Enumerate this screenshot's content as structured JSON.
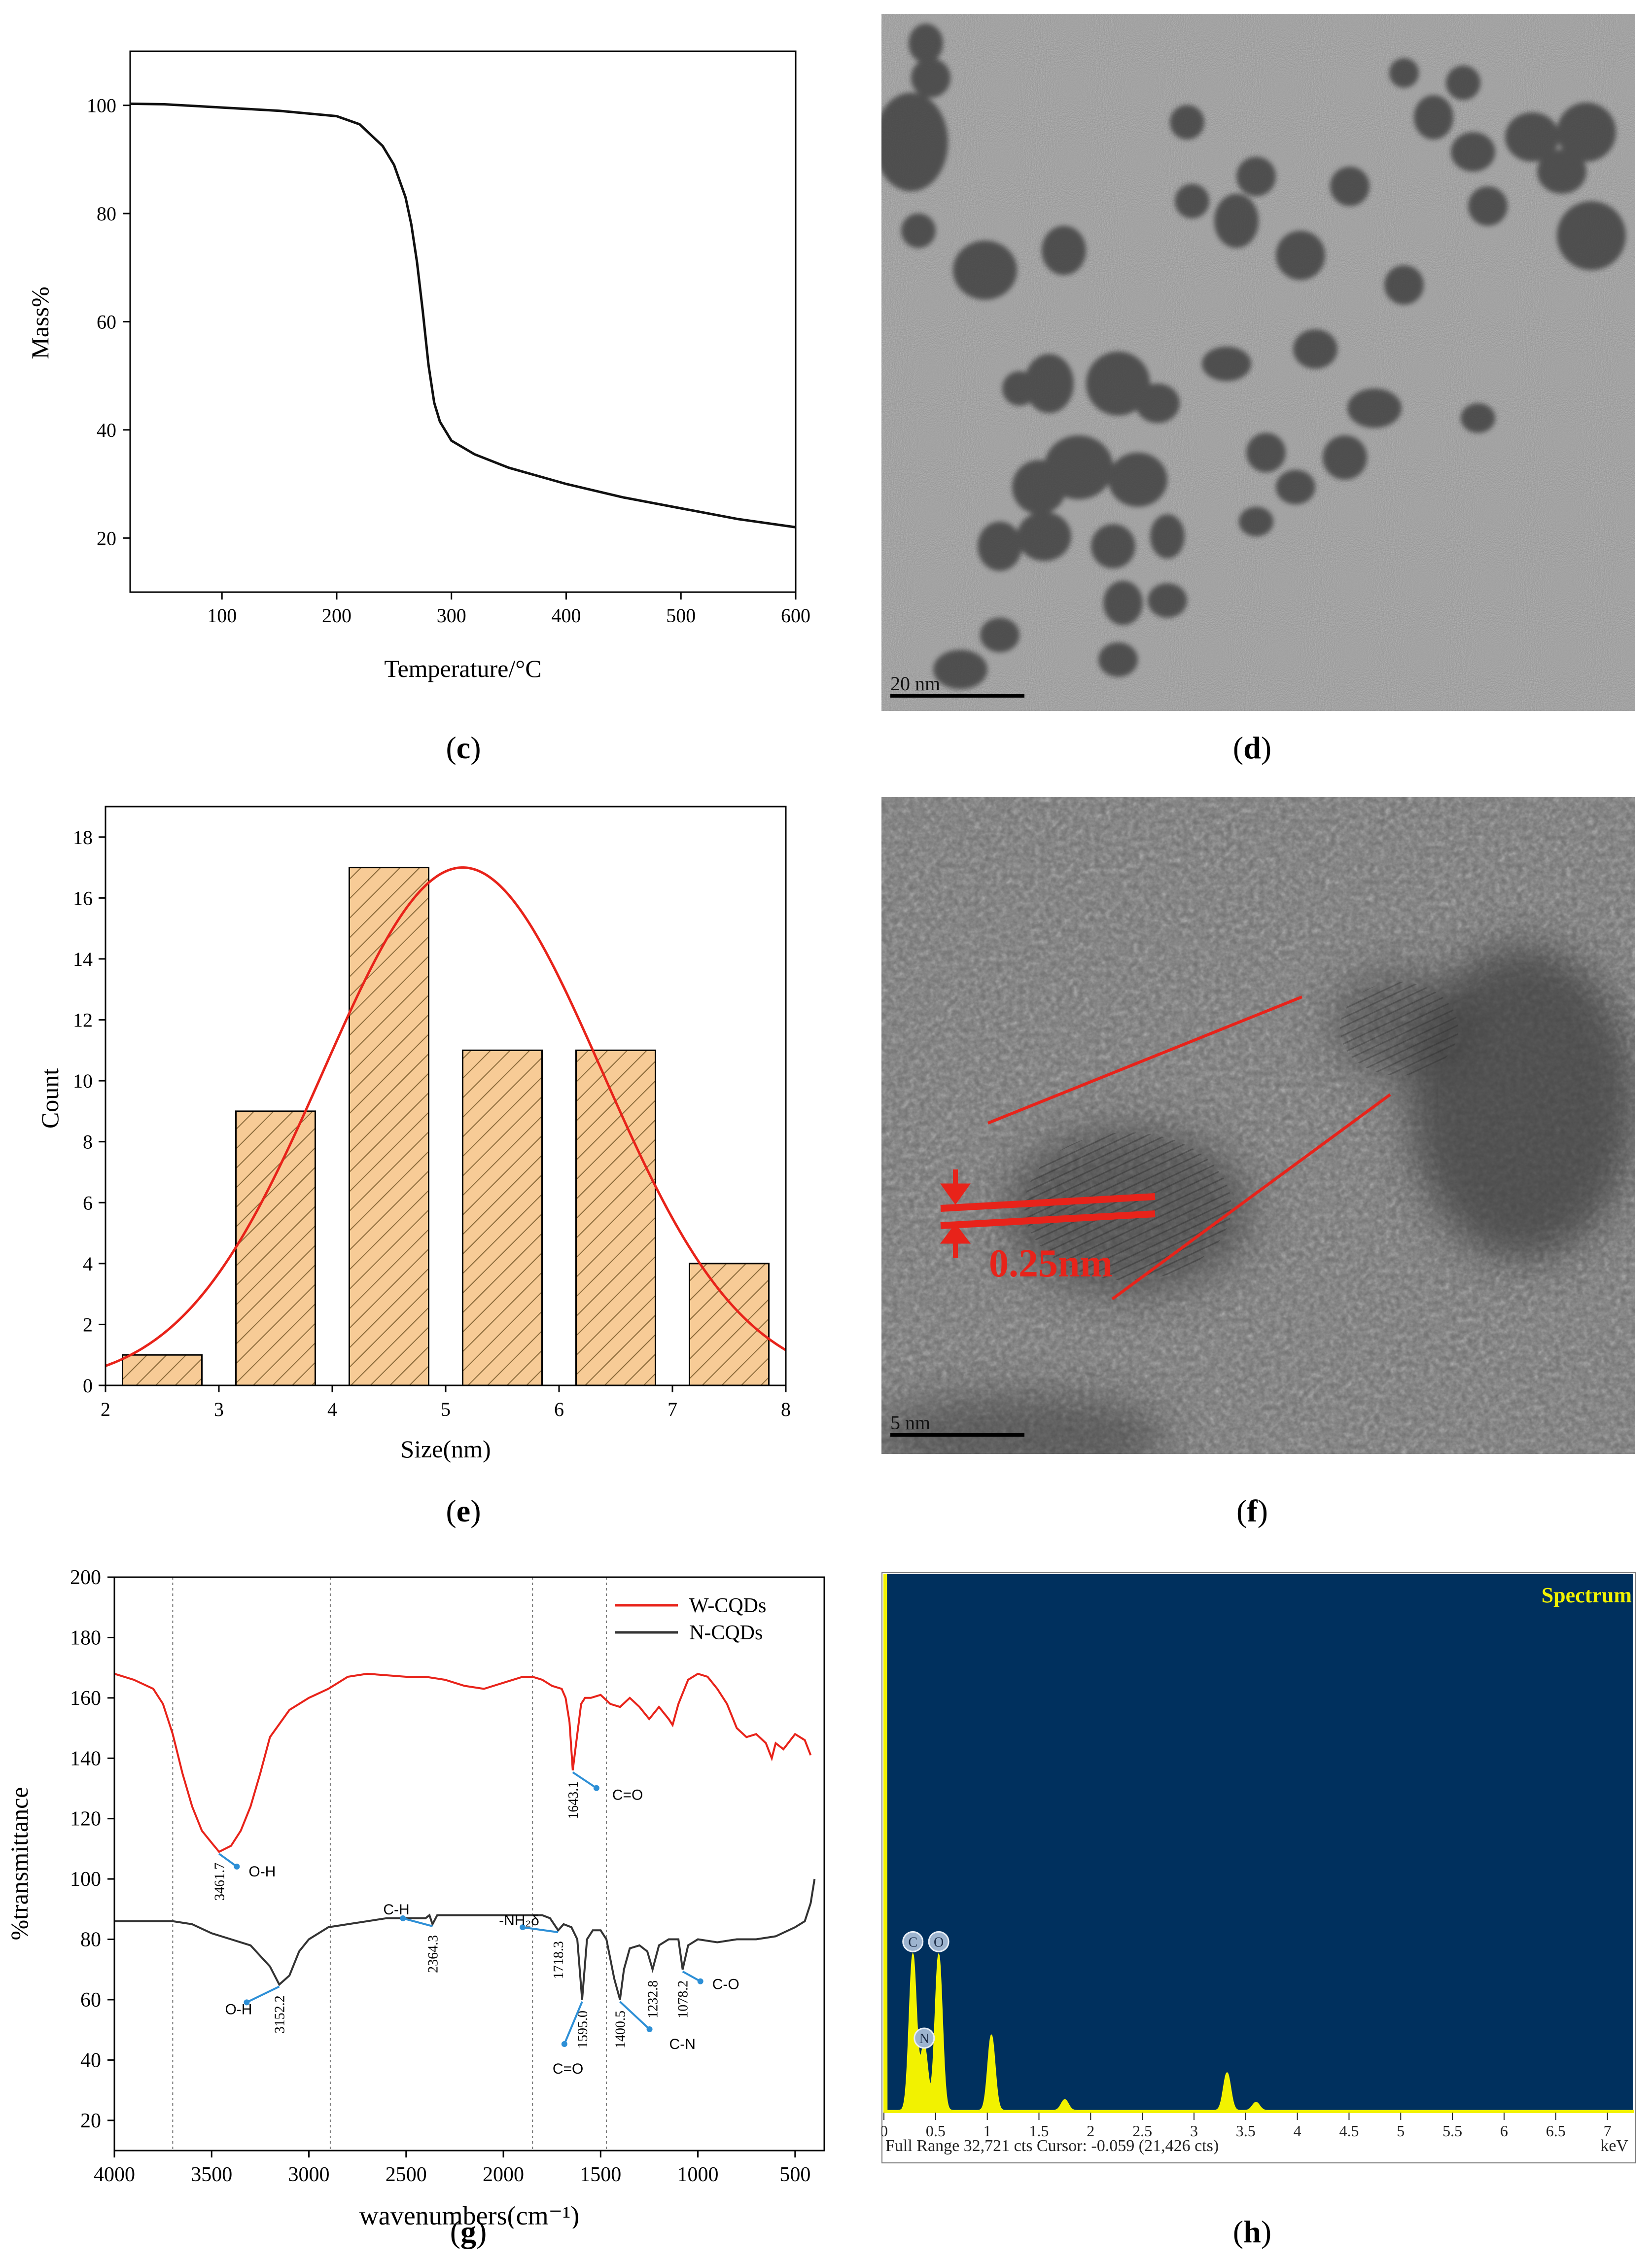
{
  "captions": {
    "c": "c",
    "d": "d",
    "e": "e",
    "f": "f",
    "g": "g",
    "h": "h"
  },
  "tem_d": {
    "scale_label": "20 nm"
  },
  "tem_f": {
    "scale_label": "5 nm",
    "annotation": "0.25nm"
  },
  "chart_data": [
    {
      "panel": "c",
      "type": "line",
      "xlabel": "Temperature/°C",
      "ylabel": "Mass%",
      "xlim": [
        20,
        600
      ],
      "ylim": [
        10,
        110
      ],
      "xticks": [
        100,
        200,
        300,
        400,
        500,
        600
      ],
      "yticks": [
        20,
        40,
        60,
        80,
        100
      ],
      "series": [
        {
          "x": [
            20,
            50,
            100,
            150,
            200,
            220,
            240,
            250,
            260,
            265,
            270,
            275,
            280,
            285,
            290,
            300,
            320,
            350,
            400,
            450,
            500,
            550,
            600
          ],
          "y": [
            100.3,
            100.2,
            99.6,
            99.0,
            98.0,
            96.5,
            92.5,
            89,
            83,
            78,
            71,
            62,
            52,
            45,
            41.5,
            38,
            35.5,
            33,
            30,
            27.5,
            25.5,
            23.5,
            22
          ]
        }
      ]
    },
    {
      "panel": "e",
      "type": "bar",
      "xlabel": "Size(nm)",
      "ylabel": "Count",
      "xlim": [
        2,
        8
      ],
      "ylim": [
        0,
        19
      ],
      "xticks": [
        2,
        3,
        4,
        5,
        6,
        7,
        8
      ],
      "yticks": [
        0,
        2,
        4,
        6,
        8,
        10,
        12,
        14,
        16,
        18
      ],
      "bins": [
        {
          "x0": 2.15,
          "x1": 2.85,
          "count": 1
        },
        {
          "x0": 3.15,
          "x1": 3.85,
          "count": 9
        },
        {
          "x0": 4.15,
          "x1": 4.85,
          "count": 17
        },
        {
          "x0": 5.15,
          "x1": 5.85,
          "count": 11
        },
        {
          "x0": 6.15,
          "x1": 6.85,
          "count": 11
        },
        {
          "x0": 7.15,
          "x1": 7.85,
          "count": 4
        }
      ],
      "fit": {
        "type": "gaussian",
        "center": 5.15,
        "amplitude": 17,
        "sigma": 1.23,
        "color": "#e8231a"
      },
      "bar_color": "#f7cb96"
    },
    {
      "panel": "g",
      "type": "line",
      "xlabel": "wavenumbers(cm⁻¹)",
      "ylabel": "%transmittance",
      "xlim": [
        4000,
        350
      ],
      "ylim": [
        10,
        200
      ],
      "xticks": [
        4000,
        3500,
        3000,
        2500,
        2000,
        1500,
        1000,
        500
      ],
      "yticks": [
        20,
        40,
        60,
        80,
        100,
        120,
        140,
        160,
        180,
        200
      ],
      "vlines": [
        3700,
        2890,
        1850,
        1470
      ],
      "legend": "top-right",
      "series": [
        {
          "name": "W-CQDs",
          "color": "#e8231a",
          "x": [
            4000,
            3900,
            3800,
            3750,
            3700,
            3650,
            3600,
            3550,
            3500,
            3461.7,
            3400,
            3350,
            3300,
            3250,
            3200,
            3100,
            3000,
            2900,
            2800,
            2700,
            2500,
            2400,
            2300,
            2200,
            2100,
            2000,
            1900,
            1850,
            1800,
            1750,
            1700,
            1680,
            1660,
            1643.1,
            1620,
            1600,
            1580,
            1550,
            1500,
            1450,
            1400,
            1350,
            1300,
            1250,
            1200,
            1150,
            1130,
            1100,
            1050,
            1000,
            950,
            900,
            850,
            800,
            750,
            700,
            650,
            620,
            600,
            560,
            500,
            450,
            420
          ],
          "y": [
            168,
            166,
            163,
            158,
            148,
            135,
            124,
            116,
            112,
            109,
            111,
            116,
            124,
            135,
            147,
            156,
            160,
            163,
            167,
            168,
            167,
            167,
            166,
            164,
            163,
            165,
            167,
            167,
            166,
            164,
            163,
            160,
            152,
            136,
            148,
            158,
            160,
            160,
            161,
            158,
            157,
            160,
            157,
            153,
            157,
            153,
            151,
            158,
            166,
            168,
            167,
            163,
            158,
            150,
            147,
            148,
            145,
            140,
            145,
            143,
            148,
            146,
            141
          ]
        },
        {
          "name": "N-CQDs",
          "color": "#333333",
          "x": [
            4000,
            3900,
            3800,
            3700,
            3600,
            3500,
            3400,
            3300,
            3200,
            3152.2,
            3100,
            3050,
            3000,
            2900,
            2800,
            2700,
            2600,
            2500,
            2400,
            2380,
            2364.3,
            2340,
            2200,
            2000,
            1900,
            1800,
            1760,
            1718.3,
            1690,
            1650,
            1620,
            1595.0,
            1570,
            1540,
            1500,
            1470,
            1430,
            1400.5,
            1380,
            1350,
            1300,
            1260,
            1232.8,
            1200,
            1150,
            1100,
            1078.2,
            1050,
            1000,
            900,
            800,
            700,
            600,
            500,
            450,
            420,
            400
          ],
          "y": [
            86,
            86,
            86,
            86,
            85,
            82,
            80,
            78,
            71,
            65,
            68,
            76,
            80,
            84,
            85,
            86,
            87,
            87,
            87,
            88,
            85,
            88,
            88,
            88,
            88,
            88,
            87,
            83,
            85,
            84,
            80,
            60,
            80,
            83,
            83,
            80,
            67,
            60,
            70,
            77,
            78,
            76,
            70,
            78,
            80,
            80,
            70,
            78,
            80,
            79,
            80,
            80,
            81,
            84,
            86,
            92,
            100
          ]
        }
      ],
      "annotations": {
        "W-CQDs": [
          {
            "value": "3461.7",
            "label": "O-H"
          },
          {
            "value": "1643.1",
            "label": "C=O"
          }
        ],
        "N-CQDs": [
          {
            "value": "3152.2",
            "label": "O-H"
          },
          {
            "value": "2364.3",
            "label": "C-H"
          },
          {
            "value": "1718.3",
            "label": "-NH₂δ"
          },
          {
            "value": "1595.0",
            "label": "C=O"
          },
          {
            "value": "1400.5",
            "label": "C-N"
          },
          {
            "value": "1232.8",
            "label": ""
          },
          {
            "value": "1078.2",
            "label": "C-O"
          }
        ]
      }
    },
    {
      "panel": "h",
      "type": "line",
      "title": "Spectrum",
      "xlabel": "keV",
      "xlim": [
        0,
        7.25
      ],
      "xticks": [
        "0",
        "0.5",
        "1",
        "1.5",
        "2",
        "2.5",
        "3",
        "3.5",
        "4",
        "4.5",
        "5",
        "5.5",
        "6",
        "6.5",
        "7"
      ],
      "footer": "Full Range 32,721 cts Cursor: -0.059 (21,426 cts)",
      "element_markers": [
        "C",
        "N",
        "O"
      ],
      "background_color": "#00305e",
      "fill_color": "#f2f200",
      "peaks": [
        {
          "keV": 0.28,
          "height": 0.29,
          "label": "C"
        },
        {
          "keV": 0.39,
          "height": 0.12,
          "label": "N"
        },
        {
          "keV": 0.53,
          "height": 0.29,
          "label": "O"
        },
        {
          "keV": 1.04,
          "height": 0.14
        },
        {
          "keV": 1.75,
          "height": 0.02
        },
        {
          "keV": 3.32,
          "height": 0.07
        },
        {
          "keV": 3.6,
          "height": 0.015
        }
      ]
    }
  ]
}
